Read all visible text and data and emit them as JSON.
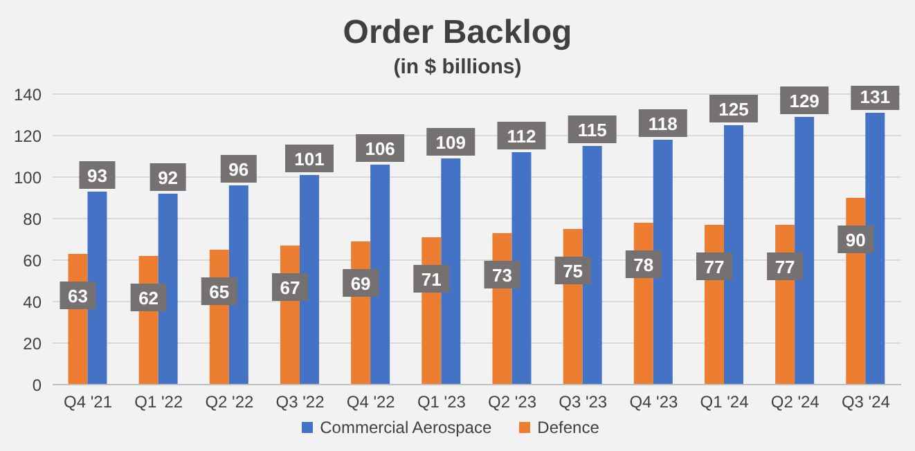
{
  "chart_data": {
    "type": "bar",
    "title": "Order Backlog",
    "subtitle": "(in $ billions)",
    "categories": [
      "Q4 '21",
      "Q1 '22",
      "Q2 '22",
      "Q3 '22",
      "Q4 '22",
      "Q1 '23",
      "Q2 '23",
      "Q3 '23",
      "Q4 '23",
      "Q1 '24",
      "Q2 '24",
      "Q3 '24"
    ],
    "series": [
      {
        "name": "Defence",
        "color": "#ed7d31",
        "values": [
          63,
          62,
          65,
          67,
          69,
          71,
          73,
          75,
          78,
          77,
          77,
          90
        ]
      },
      {
        "name": "Commercial Aerospace",
        "color": "#4472c4",
        "values": [
          93,
          92,
          96,
          101,
          106,
          109,
          112,
          115,
          118,
          125,
          129,
          131
        ]
      }
    ],
    "ylim": [
      0,
      140
    ],
    "yticks": [
      0,
      20,
      40,
      60,
      80,
      100,
      120,
      140
    ],
    "grid": "y",
    "legend": "bottom",
    "data_labels": true
  }
}
